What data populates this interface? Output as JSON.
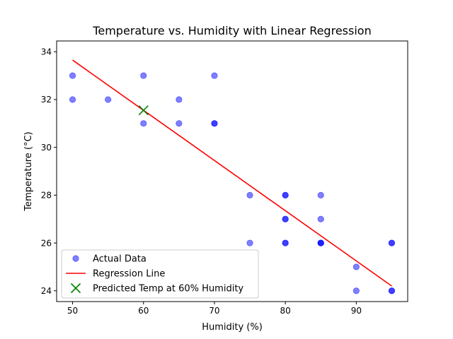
{
  "chart_data": {
    "type": "scatter",
    "title": "Temperature vs. Humidity with Linear Regression",
    "xlabel": "Humidity (%)",
    "ylabel": "Temperature (°C)",
    "xlim": [
      47.75,
      97.25
    ],
    "ylim": [
      23.55,
      34.45
    ],
    "x_ticks": [
      50,
      60,
      70,
      80,
      90
    ],
    "y_ticks": [
      24,
      26,
      28,
      30,
      32,
      34
    ],
    "grid": false,
    "legend_position": "lower-left",
    "series": [
      {
        "name": "Actual Data",
        "kind": "scatter",
        "color": "#0000ff",
        "alpha": 0.5,
        "points": [
          [
            50,
            33
          ],
          [
            50,
            32
          ],
          [
            55,
            32
          ],
          [
            60,
            33
          ],
          [
            60,
            31
          ],
          [
            65,
            32
          ],
          [
            65,
            31
          ],
          [
            70,
            33
          ],
          [
            70,
            31
          ],
          [
            70,
            31
          ],
          [
            75,
            28
          ],
          [
            75,
            26
          ],
          [
            80,
            28
          ],
          [
            80,
            28
          ],
          [
            80,
            27
          ],
          [
            80,
            27
          ],
          [
            80,
            26
          ],
          [
            80,
            26
          ],
          [
            85,
            28
          ],
          [
            85,
            27
          ],
          [
            85,
            26
          ],
          [
            85,
            26
          ],
          [
            85,
            26
          ],
          [
            90,
            25
          ],
          [
            90,
            24
          ],
          [
            95,
            26
          ],
          [
            95,
            26
          ],
          [
            95,
            24
          ],
          [
            95,
            24
          ]
        ]
      },
      {
        "name": "Regression Line",
        "kind": "line",
        "color": "#ff0000",
        "points": [
          [
            50,
            33.65
          ],
          [
            95,
            24.2
          ]
        ]
      },
      {
        "name": "Predicted Temp at 60% Humidity",
        "kind": "marker-x",
        "color": "#008000",
        "points": [
          [
            60,
            31.55
          ]
        ]
      }
    ]
  }
}
